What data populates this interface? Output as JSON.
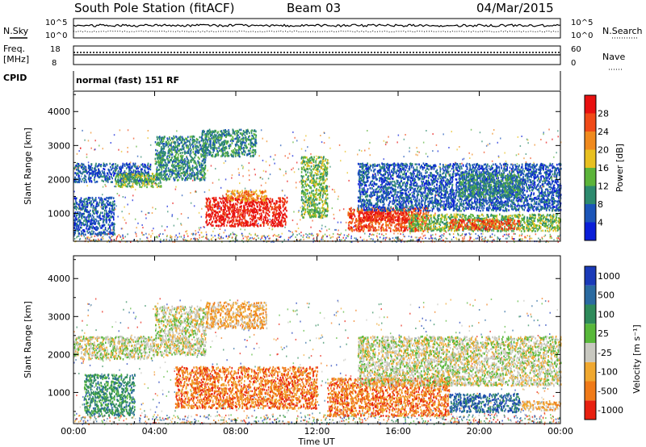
{
  "header": {
    "station": "South Pole Station (fitACF)",
    "beam": "Beam 03",
    "date": "04/Mar/2015"
  },
  "top_panels": {
    "nsky": {
      "label": "N.Sky",
      "y_ticks": [
        "10^5",
        "10^0"
      ]
    },
    "nsearch": {
      "label": "N.Search",
      "y_ticks": [
        "10^5",
        "10^0"
      ]
    },
    "freq": {
      "label_line1": "Freq.",
      "label_line2": "[MHz]",
      "y_ticks": [
        "18",
        "8"
      ]
    },
    "nave": {
      "label": "Nave",
      "y_ticks": [
        "60",
        "0"
      ]
    },
    "cpid": {
      "label": "CPID",
      "value": "normal (fast) 151 RF"
    }
  },
  "chart_data": [
    {
      "type": "heatmap",
      "title": "",
      "xlabel": "",
      "ylabel": "Slant Range [km]",
      "x_ticks": [
        "00:00",
        "04:00",
        "08:00",
        "12:00",
        "16:00",
        "20:00",
        "00:00"
      ],
      "x_range_hours": [
        0,
        24
      ],
      "y_ticks": [
        1000,
        2000,
        3000,
        4000
      ],
      "y_range_km": [
        180,
        4600
      ],
      "colorbar": {
        "label": "Power [dB]",
        "ticks": [
          4,
          8,
          12,
          16,
          20,
          24,
          28
        ],
        "colors": [
          "#0a1ed8",
          "#1c55b8",
          "#2d8a6e",
          "#5cb43a",
          "#e8c020",
          "#f08a1e",
          "#f04a18",
          "#e81010"
        ]
      },
      "regions": [
        {
          "t": [
            0.0,
            3.8
          ],
          "r": [
            1950,
            2500
          ],
          "level": 1
        },
        {
          "t": [
            2.0,
            4.3
          ],
          "r": [
            1800,
            2200
          ],
          "level": 3
        },
        {
          "t": [
            4.0,
            6.5
          ],
          "r": [
            2000,
            3300
          ],
          "level": 2
        },
        {
          "t": [
            6.3,
            9.0
          ],
          "r": [
            2700,
            3500
          ],
          "level": 2
        },
        {
          "t": [
            0.0,
            2.0
          ],
          "r": [
            400,
            1500
          ],
          "level": 1
        },
        {
          "t": [
            6.5,
            10.5
          ],
          "r": [
            650,
            1500
          ],
          "level": 7
        },
        {
          "t": [
            7.5,
            9.5
          ],
          "r": [
            1400,
            1700
          ],
          "level": 5
        },
        {
          "t": [
            11.2,
            12.5
          ],
          "r": [
            900,
            2700
          ],
          "level": 3
        },
        {
          "t": [
            13.5,
            17.5
          ],
          "r": [
            500,
            1200
          ],
          "level": 6
        },
        {
          "t": [
            14.0,
            16.5
          ],
          "r": [
            800,
            1100
          ],
          "level": 7
        },
        {
          "t": [
            16.5,
            24.0
          ],
          "r": [
            500,
            1000
          ],
          "level": 3
        },
        {
          "t": [
            18.5,
            22.0
          ],
          "r": [
            550,
            850
          ],
          "level": 6
        },
        {
          "t": [
            14.0,
            24.0
          ],
          "r": [
            1100,
            2500
          ],
          "level": 1
        },
        {
          "t": [
            19.0,
            22.0
          ],
          "r": [
            1500,
            2200
          ],
          "level": 2
        }
      ]
    },
    {
      "type": "heatmap",
      "title": "",
      "xlabel": "Time UT",
      "ylabel": "Slant Range [km]",
      "x_ticks": [
        "00:00",
        "04:00",
        "08:00",
        "12:00",
        "16:00",
        "20:00",
        "00:00"
      ],
      "x_range_hours": [
        0,
        24
      ],
      "y_ticks": [
        1000,
        2000,
        3000,
        4000
      ],
      "y_range_km": [
        180,
        4600
      ],
      "colorbar": {
        "label": "Velocity [m s⁻¹]",
        "ticks": [
          "1000",
          "500",
          "100",
          "25",
          "-25",
          "-100",
          "-500",
          "-1000"
        ],
        "colors": [
          "#1a3ab8",
          "#2a6aa0",
          "#2e8a5a",
          "#58b83a",
          "#c8c8c0",
          "#f0a830",
          "#f07a18",
          "#e82010"
        ]
      },
      "regions": [
        {
          "t": [
            0.0,
            4.0
          ],
          "r": [
            1900,
            2500
          ],
          "level": 4
        },
        {
          "t": [
            4.0,
            6.5
          ],
          "r": [
            2000,
            3300
          ],
          "level": 4
        },
        {
          "t": [
            6.5,
            9.5
          ],
          "r": [
            2700,
            3400
          ],
          "level": 5
        },
        {
          "t": [
            0.5,
            3.0
          ],
          "r": [
            400,
            1500
          ],
          "level": 2
        },
        {
          "t": [
            5.0,
            12.0
          ],
          "r": [
            600,
            1700
          ],
          "level": 6
        },
        {
          "t": [
            12.5,
            18.5
          ],
          "r": [
            400,
            1400
          ],
          "level": 6
        },
        {
          "t": [
            18.5,
            22.0
          ],
          "r": [
            500,
            1000
          ],
          "level": 1
        },
        {
          "t": [
            14.0,
            24.0
          ],
          "r": [
            1200,
            2500
          ],
          "level": 4
        },
        {
          "t": [
            22.0,
            24.0
          ],
          "r": [
            550,
            800
          ],
          "level": 5
        }
      ]
    }
  ]
}
